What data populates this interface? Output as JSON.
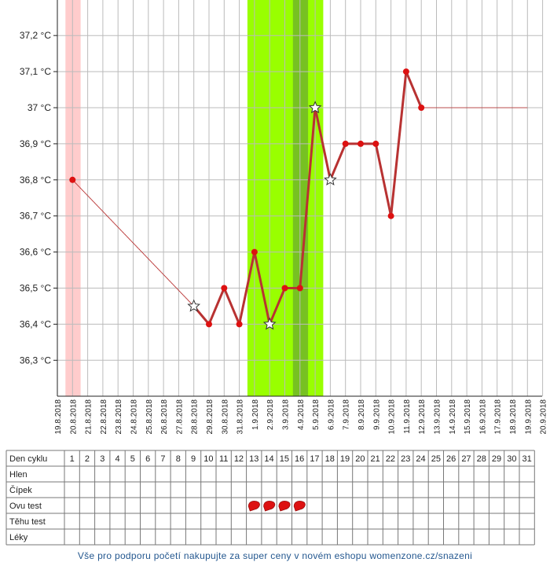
{
  "chart_data": {
    "type": "line",
    "y_ticks": [
      "37,2 °C",
      "37,1 °C",
      "37 °C",
      "36,9 °C",
      "36,8 °C",
      "36,7 °C",
      "36,6 °C",
      "36,5 °C",
      "36,4 °C",
      "36,3 °C"
    ],
    "y_tick_values": [
      37.2,
      37.1,
      37.0,
      36.9,
      36.8,
      36.7,
      36.6,
      36.5,
      36.4,
      36.3
    ],
    "ylim": [
      36.2,
      37.3
    ],
    "dates": [
      "19.8.2018",
      "20.8.2018",
      "21.8.2018",
      "22.8.2018",
      "23.8.2018",
      "24.8.2018",
      "25.8.2018",
      "26.8.2018",
      "27.8.2018",
      "28.8.2018",
      "29.8.2018",
      "30.8.2018",
      "31.8.2018",
      "1.9.2018",
      "2.9.2018",
      "3.9.2018",
      "4.9.2018",
      "5.9.2018",
      "6.9.2018",
      "7.9.2018",
      "8.9.2018",
      "9.9.2018",
      "10.9.2018",
      "11.9.2018",
      "12.9.2018",
      "13.9.2018",
      "14.9.2018",
      "15.9.2018",
      "16.9.2018",
      "17.9.2018",
      "18.9.2018",
      "19.9.2018",
      "20.9.2018"
    ],
    "series": [
      {
        "values": [
          null,
          36.8,
          null,
          null,
          null,
          null,
          null,
          null,
          null,
          36.45,
          36.4,
          36.5,
          36.4,
          36.6,
          36.4,
          36.5,
          36.5,
          37.0,
          36.8,
          36.9,
          36.9,
          36.9,
          36.7,
          37.1,
          37.0,
          null,
          null,
          null,
          null,
          null,
          null,
          null,
          null
        ],
        "markers": [
          "none",
          "dot",
          "none",
          "none",
          "none",
          "none",
          "none",
          "none",
          "none",
          "star",
          "dot",
          "dot",
          "dot",
          "dot",
          "star",
          "dot",
          "dot",
          "star",
          "star",
          "dot",
          "dot",
          "dot",
          "dot",
          "dot",
          "dot",
          "none",
          "none",
          "none",
          "none",
          "none",
          "none",
          "none",
          "none"
        ],
        "extension_value": 37.0,
        "extension_to": "19.9.2018",
        "color": "#b83232",
        "marker_color": "#dd1111"
      }
    ],
    "menstruation_days": [
      "20.8.2018"
    ],
    "fertile_window": [
      "1.9.2018",
      "5.9.2018"
    ],
    "ovulation_day": "4.9.2018",
    "colors": {
      "menstruation": "#ffcccc",
      "fertile": "#99ff00",
      "ovulation": "#77c122",
      "grid": "#bbbbbb",
      "line": "#b83232",
      "marker": "#dd1111",
      "heart": "#dd1111",
      "footer_text": "#23578f"
    },
    "grid": true
  },
  "table": {
    "rows": [
      {
        "label": "Den cyklu",
        "cells": [
          "1",
          "2",
          "3",
          "4",
          "5",
          "6",
          "7",
          "8",
          "9",
          "10",
          "11",
          "12",
          "13",
          "14",
          "15",
          "16",
          "17",
          "18",
          "19",
          "20",
          "21",
          "22",
          "23",
          "24",
          "25",
          "26",
          "27",
          "28",
          "29",
          "30",
          "31"
        ]
      },
      {
        "label": "Hlen",
        "cells": []
      },
      {
        "label": "Čípek",
        "cells": []
      },
      {
        "label": "Ovu test",
        "cells": [],
        "heart_days": [
          13,
          14,
          15,
          16
        ]
      },
      {
        "label": "Těhu test",
        "cells": []
      },
      {
        "label": "Léky",
        "cells": []
      }
    ]
  },
  "footer": {
    "text": "Vše pro podporu početí nakupujte za super ceny v novém eshopu womenzone.cz/snazeni"
  }
}
